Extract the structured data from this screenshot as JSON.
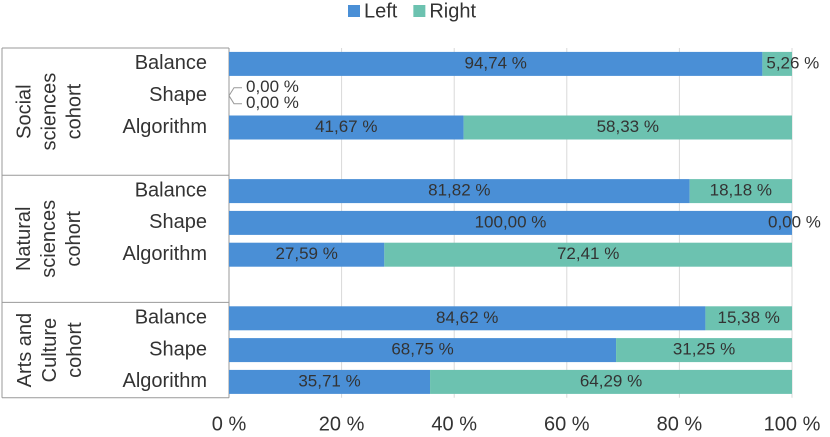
{
  "chart_data": {
    "type": "stacked-bar-horizontal",
    "groups": [
      "Social sciences cohort",
      "Natural sciences cohort",
      "Arts and Culture cohort"
    ],
    "categories": [
      "Balance",
      "Shape",
      "Algorithm",
      "Balance",
      "Shape",
      "Algorithm",
      "Balance",
      "Shape",
      "Algorithm"
    ],
    "series": [
      {
        "name": "Left",
        "color": "#4a8fd6",
        "values": [
          94.74,
          0,
          41.67,
          81.82,
          100,
          27.59,
          84.62,
          68.75,
          35.71
        ],
        "value_labels": [
          "94,74 %",
          "0,00 %",
          "41,67 %",
          "81,82 %",
          "100,00 %",
          "27,59 %",
          "84,62 %",
          "68,75 %",
          "35,71 %"
        ]
      },
      {
        "name": "Right",
        "color": "#6cc2b0",
        "values": [
          5.26,
          0,
          58.33,
          18.18,
          0,
          72.41,
          15.38,
          31.25,
          64.29
        ],
        "value_labels": [
          "5,26 %",
          "0,00 %",
          "58,33 %",
          "18,18 %",
          "0,00 %",
          "72,41 %",
          "15,38 %",
          "31,25 %",
          "64,29 %"
        ]
      }
    ],
    "xlim": [
      0,
      100
    ],
    "xticks": [
      {
        "value": 0,
        "label": "0 %"
      },
      {
        "value": 20,
        "label": "20 %"
      },
      {
        "value": 40,
        "label": "40 %"
      },
      {
        "value": 60,
        "label": "60 %"
      },
      {
        "value": 80,
        "label": "80 %"
      },
      {
        "value": 100,
        "label": "100 %"
      }
    ],
    "grid": true,
    "legend": "top"
  }
}
